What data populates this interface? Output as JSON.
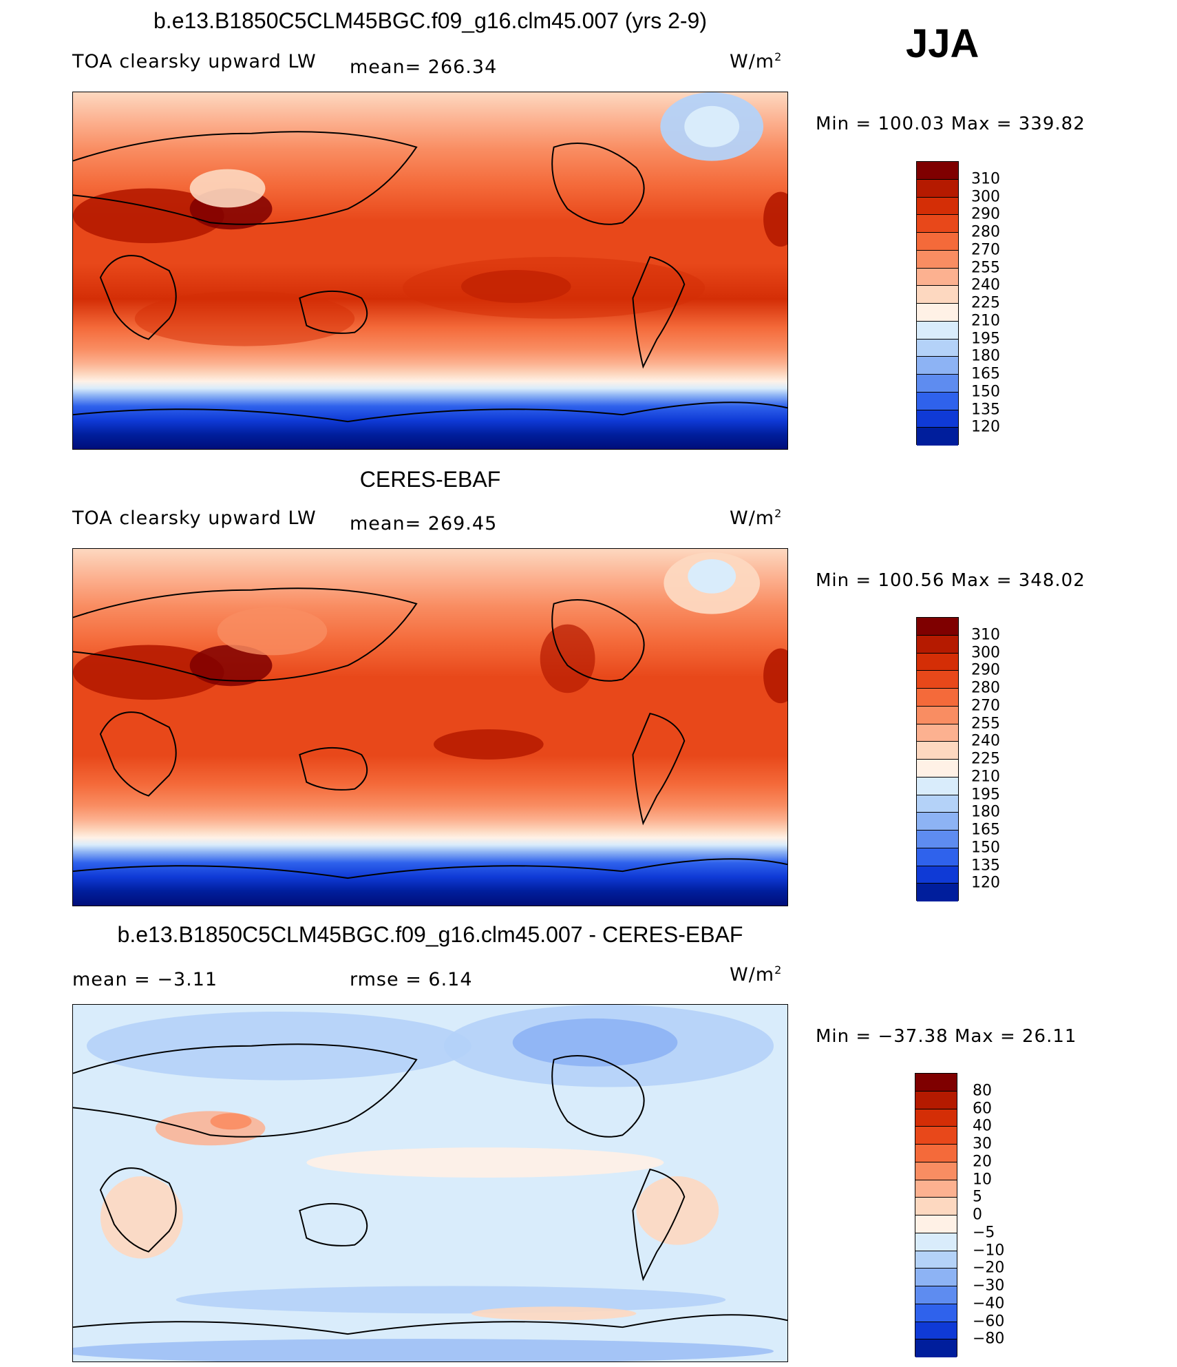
{
  "season": "JJA",
  "panels": [
    {
      "title": "b.e13.B1850C5CLM45BGC.f09_g16.clm45.007 (yrs 2-9)",
      "left_label": "TOA clearsky upward LW",
      "center_label": "mean= 266.34",
      "units": "W/m",
      "units_sup": "2",
      "min_label": "Min = 100.03",
      "max_label": "Max = 339.82",
      "kind": "abs"
    },
    {
      "title": "CERES-EBAF",
      "left_label": "TOA clearsky upward LW",
      "center_label": "mean= 269.45",
      "units": "W/m",
      "units_sup": "2",
      "min_label": "Min = 100.56",
      "max_label": "Max = 348.02",
      "kind": "abs"
    },
    {
      "title": "b.e13.B1850C5CLM45BGC.f09_g16.clm45.007 - CERES-EBAF",
      "left_label": "mean =  −3.11",
      "center_label": "rmse =    6.14",
      "units": "W/m",
      "units_sup": "2",
      "min_label": "Min = −37.38",
      "max_label": "Max =  26.11",
      "kind": "diff"
    }
  ],
  "colorbars": {
    "abs_levels": [
      "310",
      "300",
      "290",
      "280",
      "270",
      "255",
      "240",
      "225",
      "210",
      "195",
      "180",
      "165",
      "150",
      "135",
      "120"
    ],
    "abs_colors": [
      "#7f0000",
      "#b51a00",
      "#d42e06",
      "#e8481a",
      "#f46a3a",
      "#f98d62",
      "#fcb190",
      "#fdd8c0",
      "#fff1e6",
      "#d9ecfb",
      "#b4d2f8",
      "#8db3f4",
      "#5e8cf0",
      "#2f62ec",
      "#0f3ad6",
      "#001e9c"
    ],
    "diff_levels": [
      "80",
      "60",
      "40",
      "30",
      "20",
      "10",
      "5",
      "0",
      "−5",
      "−10",
      "−20",
      "−30",
      "−40",
      "−60",
      "−80"
    ],
    "diff_colors": [
      "#7f0000",
      "#b51a00",
      "#d42e06",
      "#e8481a",
      "#f46a3a",
      "#f98d62",
      "#fcb190",
      "#fdd8c0",
      "#fff1e6",
      "#d9ecfb",
      "#b4d2f8",
      "#8db3f4",
      "#5e8cf0",
      "#2f62ec",
      "#0f3ad6",
      "#001e9c"
    ]
  }
}
